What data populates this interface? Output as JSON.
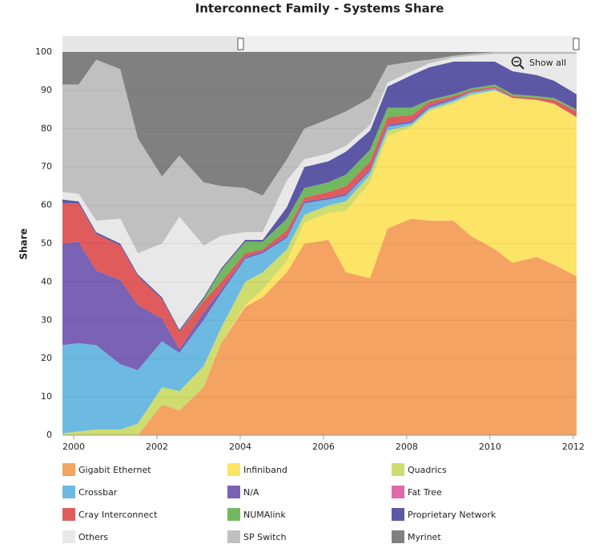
{
  "chart_data": {
    "type": "stacked_area",
    "title": "Interconnect Family - Systems Share",
    "y_label": "Share",
    "zoom_button": "Show all",
    "x": [
      1999.73,
      2000.12,
      2000.54,
      2001.12,
      2001.54,
      2002.12,
      2002.54,
      2003.12,
      2003.54,
      2004.12,
      2004.54,
      2005.12,
      2005.54,
      2006.12,
      2006.54,
      2007.12,
      2007.54,
      2008.12,
      2008.54,
      2009.12,
      2009.54,
      2010.12,
      2010.54,
      2011.12,
      2011.54,
      2012.08
    ],
    "xlim": [
      1999.73,
      2012.08
    ],
    "xticks": [
      2000,
      2002,
      2004,
      2006,
      2008,
      2010,
      2012
    ],
    "ylim": [
      0,
      100
    ],
    "yticks": [
      0,
      10,
      20,
      30,
      40,
      50,
      60,
      70,
      80,
      90,
      100
    ],
    "grid": true,
    "series": [
      {
        "name": "Gigabit Ethernet",
        "color": "#f4a362",
        "values": [
          0,
          0,
          0,
          0,
          0,
          8,
          6.5,
          12.5,
          24,
          33.5,
          36,
          42.5,
          50,
          51,
          42.5,
          41,
          54,
          56.5,
          56,
          56,
          52,
          48.5,
          45,
          46.5,
          44.5,
          41.5
        ]
      },
      {
        "name": "Infiniband",
        "color": "#fce466",
        "values": [
          0,
          0,
          0,
          0,
          0,
          0,
          0,
          0,
          0,
          0.5,
          2,
          3,
          5.5,
          7,
          16,
          25,
          24,
          24,
          28.5,
          30.5,
          36.5,
          41.5,
          43,
          41,
          42,
          41.5
        ]
      },
      {
        "name": "Quadrics",
        "color": "#cfdc6e",
        "values": [
          0.5,
          1,
          1.5,
          1.5,
          3,
          4.5,
          5,
          5.5,
          4,
          6,
          4.5,
          3,
          2,
          2,
          2.5,
          2,
          1.5,
          0.5,
          0.5,
          0.5,
          0.5,
          0,
          0,
          0,
          0,
          0
        ]
      },
      {
        "name": "Crossbar",
        "color": "#6cb9e2",
        "values": [
          23,
          23,
          22,
          17,
          14,
          12,
          10,
          12,
          9,
          6,
          5,
          3,
          3,
          1.5,
          1.5,
          1,
          1,
          0.5,
          0.5,
          0.5,
          0.5,
          0.5,
          0,
          0,
          0,
          0
        ]
      },
      {
        "name": "N/A",
        "color": "#7a62b4",
        "values": [
          26.5,
          26.5,
          19.5,
          22,
          17,
          6,
          1,
          2,
          1,
          0.5,
          0.5,
          0.5,
          0.5,
          0.5,
          0.5,
          0.5,
          0.5,
          0.5,
          0.5,
          0.5,
          0,
          0,
          0,
          0,
          0,
          0
        ]
      },
      {
        "name": "Fat Tree",
        "color": "#e06aa8",
        "values": [
          0,
          0,
          0,
          0,
          0,
          0,
          0,
          0,
          0,
          0,
          0,
          0,
          0,
          0,
          0,
          0,
          0,
          0,
          0,
          0,
          0,
          0,
          0,
          0,
          0,
          0
        ]
      },
      {
        "name": "Cray Interconnect",
        "color": "#e05b5c",
        "values": [
          10.5,
          10,
          9.5,
          9,
          7.5,
          5,
          4.5,
          3,
          2,
          1,
          0.5,
          1.5,
          1,
          1.5,
          2,
          2,
          2,
          1.5,
          1,
          0.5,
          0.5,
          0.5,
          0.5,
          0.5,
          1,
          1.5
        ]
      },
      {
        "name": "NUMAlink",
        "color": "#72b860",
        "values": [
          0,
          0,
          0,
          0,
          0,
          0,
          0,
          0.5,
          3,
          3,
          2,
          3,
          2.5,
          2.5,
          3,
          3,
          2.5,
          2,
          0.5,
          0.5,
          0.5,
          0.5,
          0.5,
          0.5,
          0.5,
          0.5
        ]
      },
      {
        "name": "Proprietary Network",
        "color": "#5d58a6",
        "values": [
          1,
          0.5,
          0.5,
          0.5,
          0.5,
          0.5,
          0.5,
          0.5,
          0.5,
          0.5,
          0.5,
          3,
          5.5,
          5.5,
          6,
          5,
          5.5,
          8.5,
          8.5,
          8.5,
          7,
          6,
          6,
          5.5,
          4.5,
          4
        ]
      },
      {
        "name": "Others",
        "color": "#e8e8e8",
        "values": [
          2,
          2,
          3,
          6.5,
          5.5,
          14,
          29.5,
          13.5,
          8.5,
          2,
          2,
          7,
          2,
          2,
          1.5,
          1.5,
          1,
          1,
          1,
          1,
          1.5,
          2,
          4.5,
          5.5,
          7,
          10.5
        ]
      },
      {
        "name": "SP Switch",
        "color": "#c0c0c0",
        "values": [
          28,
          28.5,
          42,
          39,
          30,
          17.5,
          16,
          16.5,
          13,
          11.5,
          9.5,
          5.5,
          8,
          9,
          9,
          7,
          4.5,
          2.5,
          1,
          0.5,
          0.5,
          0.5,
          0.5,
          0.5,
          0.5,
          0.5
        ]
      },
      {
        "name": "Myrinet",
        "color": "#808080",
        "values": [
          8.5,
          8.5,
          2,
          4.5,
          22.5,
          32.5,
          27,
          34,
          35,
          35.5,
          37.5,
          28,
          20,
          17.5,
          15.5,
          12,
          3.5,
          2.5,
          2,
          1,
          0.5,
          0,
          0,
          0,
          0,
          0
        ]
      }
    ]
  }
}
